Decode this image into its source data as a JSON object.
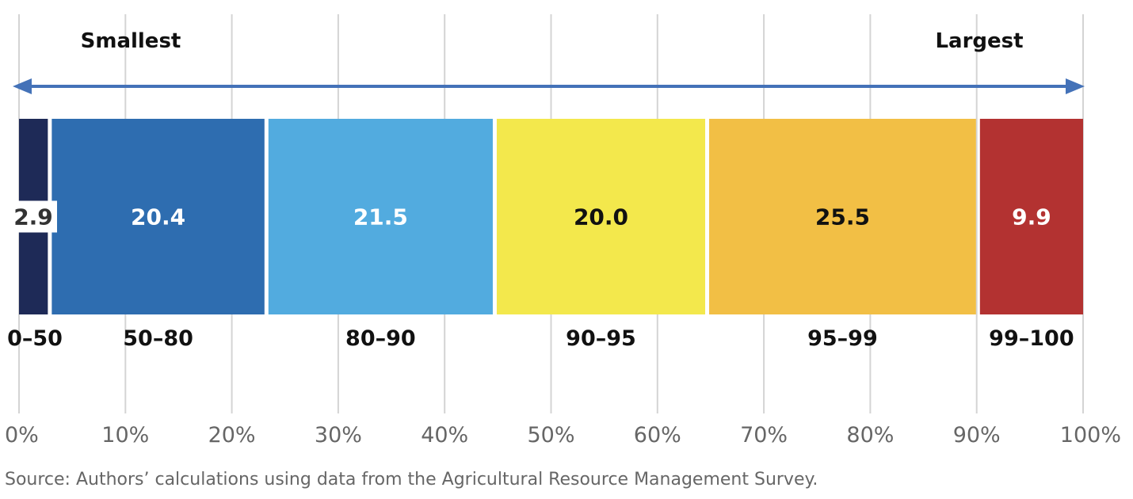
{
  "chart_data": {
    "type": "bar",
    "orientation": "horizontal-stacked-100",
    "series": [
      {
        "category": "0–50",
        "value": 2.9,
        "label": "2.9",
        "color": "#1e2a57"
      },
      {
        "category": "50–80",
        "value": 20.4,
        "label": "20.4",
        "color": "#2e6db0"
      },
      {
        "category": "80–90",
        "value": 21.5,
        "label": "21.5",
        "color": "#52abdf"
      },
      {
        "category": "90–95",
        "value": 20.0,
        "label": "20.0",
        "color": "#f3e84c"
      },
      {
        "category": "95–99",
        "value": 25.5,
        "label": "25.5",
        "color": "#f2bf45"
      },
      {
        "category": "99–100",
        "value": 9.9,
        "label": "9.9",
        "color": "#b33231"
      }
    ],
    "value_label_colors": [
      "#333333",
      "#ffffff",
      "#ffffff",
      "#111111",
      "#111111",
      "#ffffff"
    ],
    "xlim": [
      0,
      100
    ],
    "x_ticks": [
      "0%",
      "10%",
      "20%",
      "30%",
      "40%",
      "50%",
      "60%",
      "70%",
      "80%",
      "90%",
      "100%"
    ],
    "arrow_left_label": "Smallest",
    "arrow_right_label": "Largest",
    "arrow_color": "#4472b8",
    "grid": true
  },
  "source": "Source: Authors’ calculations using data from the Agricultural Resource Management Survey."
}
